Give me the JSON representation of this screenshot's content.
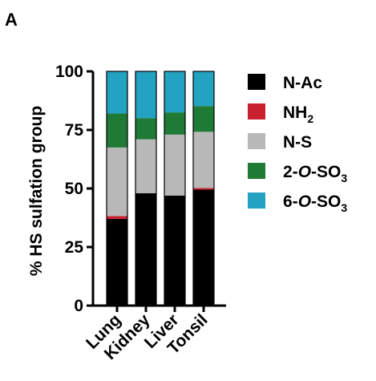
{
  "panel_label": "A",
  "colors": {
    "N-Ac": "#000000",
    "NH2": "#c8202f",
    "N-S": "#b8b8b8",
    "2-O-SO3": "#1e7a35",
    "6-O-SO3": "#23a3c1",
    "axis": "#000000"
  },
  "legend": [
    {
      "key": "N-Ac",
      "label": [
        {
          "t": "N-Ac"
        }
      ]
    },
    {
      "key": "NH2",
      "label": [
        {
          "t": "NH"
        },
        {
          "t": "2",
          "sub": true
        }
      ]
    },
    {
      "key": "N-S",
      "label": [
        {
          "t": "N-S"
        }
      ]
    },
    {
      "key": "2-O-SO3",
      "label": [
        {
          "t": "2-"
        },
        {
          "t": "O",
          "italic": true
        },
        {
          "t": "-SO"
        },
        {
          "t": "3",
          "sub": true
        }
      ]
    },
    {
      "key": "6-O-SO3",
      "label": [
        {
          "t": "6-"
        },
        {
          "t": "O",
          "italic": true
        },
        {
          "t": "-SO"
        },
        {
          "t": "3",
          "sub": true
        }
      ]
    }
  ],
  "chart_data": {
    "type": "bar",
    "stacked": true,
    "title": "",
    "xlabel": "",
    "ylabel": "% HS sulfation group",
    "ylim": [
      0,
      100
    ],
    "yticks": [
      "0",
      "25",
      "50",
      "75",
      "100"
    ],
    "categories": [
      "Lung",
      "Kidney",
      "Liver",
      "Tonsil"
    ],
    "series": [
      {
        "name": "N-Ac",
        "key": "N-Ac",
        "values": [
          37,
          48,
          47,
          49.5
        ]
      },
      {
        "name": "NH2",
        "key": "NH2",
        "values": [
          1.2,
          0,
          0,
          0.7
        ]
      },
      {
        "name": "N-S",
        "key": "N-S",
        "values": [
          29.3,
          23,
          26,
          24
        ]
      },
      {
        "name": "2-O-SO3",
        "key": "2-O-SO3",
        "values": [
          14.5,
          9,
          9.5,
          11
        ]
      },
      {
        "name": "6-O-SO3",
        "key": "6-O-SO3",
        "values": [
          18,
          20,
          17.5,
          14.8
        ]
      }
    ],
    "legend_position": "right",
    "grid": false
  }
}
